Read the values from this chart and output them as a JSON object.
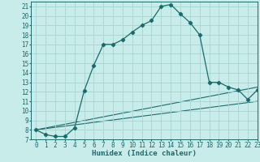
{
  "xlabel": "Humidex (Indice chaleur)",
  "bg_color": "#c8ecea",
  "grid_color": "#aad4d0",
  "line_color": "#1a6b6b",
  "xlim": [
    -0.5,
    23
  ],
  "ylim": [
    7,
    21.5
  ],
  "yticks": [
    7,
    8,
    9,
    10,
    11,
    12,
    13,
    14,
    15,
    16,
    17,
    18,
    19,
    20,
    21
  ],
  "xticks": [
    0,
    1,
    2,
    3,
    4,
    5,
    6,
    7,
    8,
    9,
    10,
    11,
    12,
    13,
    14,
    15,
    16,
    17,
    18,
    19,
    20,
    21,
    22,
    23
  ],
  "main_x": [
    0,
    1,
    2,
    3,
    4,
    5,
    6,
    7,
    8,
    9,
    10,
    11,
    12,
    13,
    14,
    15,
    16,
    17,
    18,
    19,
    20,
    21,
    22,
    23
  ],
  "main_y": [
    8.0,
    7.5,
    7.3,
    7.3,
    8.2,
    12.1,
    14.8,
    17.0,
    17.0,
    17.5,
    18.3,
    19.0,
    19.5,
    21.0,
    21.2,
    20.2,
    19.3,
    18.0,
    13.0,
    13.0,
    12.5,
    12.2,
    11.2,
    12.2
  ],
  "line2_x": [
    0,
    23
  ],
  "line2_y": [
    8.0,
    12.5
  ],
  "line3_x": [
    0,
    23
  ],
  "line3_y": [
    8.0,
    11.0
  ],
  "font_size_label": 6.5,
  "font_size_tick": 5.5
}
